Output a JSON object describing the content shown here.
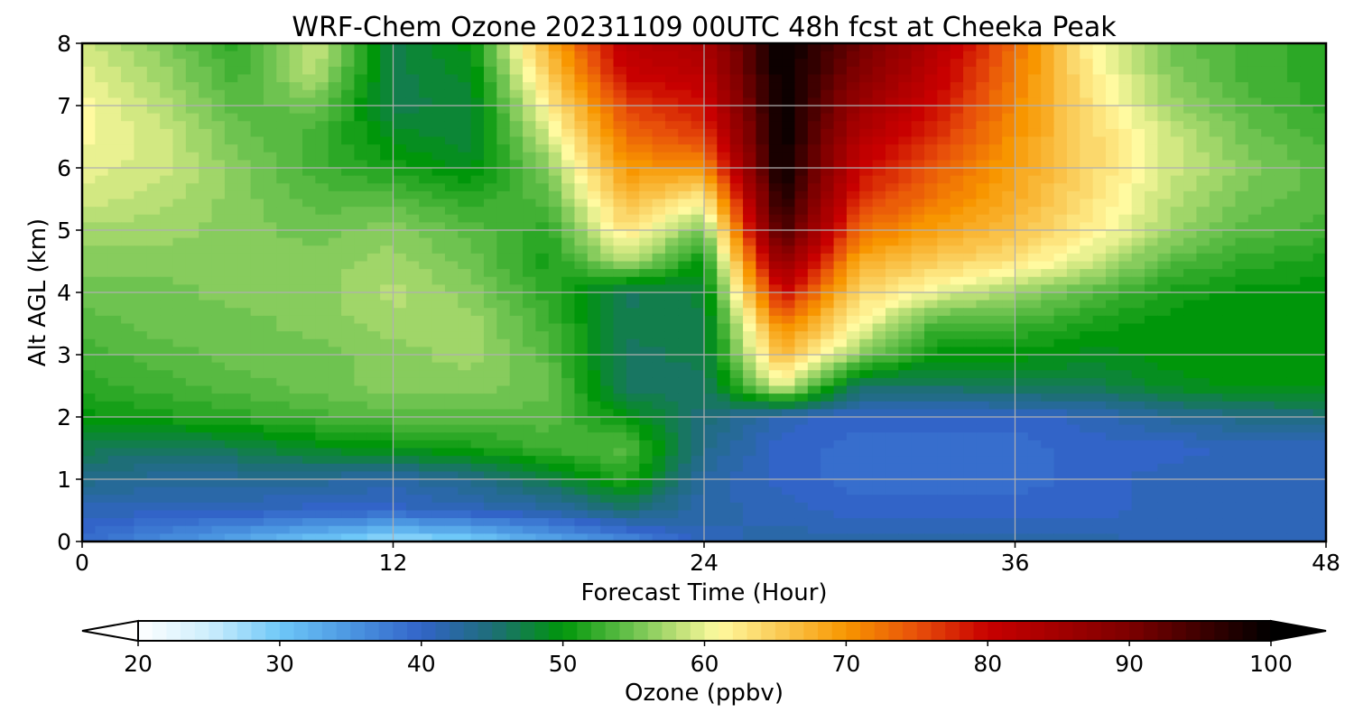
{
  "chart_data": {
    "type": "heatmap",
    "title": "WRF-Chem Ozone  20231109 00UTC 48h fcst at Cheeka Peak",
    "xlabel": "Forecast Time (Hour)",
    "ylabel": "Alt AGL (km)",
    "xlim": [
      0,
      48
    ],
    "ylim": [
      0,
      8
    ],
    "xticks": [
      "0",
      "12",
      "24",
      "36",
      "48"
    ],
    "yticks": [
      "0",
      "1",
      "2",
      "3",
      "4",
      "5",
      "6",
      "7",
      "8"
    ],
    "grid": true,
    "colorbar": {
      "label": "Ozone  (ppbv)",
      "min": 20,
      "max": 100,
      "ticks": [
        "20",
        "30",
        "40",
        "50",
        "60",
        "70",
        "80",
        "90",
        "100"
      ],
      "extend": "both"
    },
    "x": [
      0,
      3,
      6,
      9,
      12,
      15,
      18,
      21,
      24,
      27,
      30,
      33,
      36,
      39,
      42,
      45,
      48
    ],
    "y": [
      0,
      0.5,
      1,
      1.5,
      2,
      2.5,
      3,
      3.5,
      4,
      4.5,
      5,
      5.5,
      6,
      6.5,
      7,
      7.5,
      8
    ],
    "z": [
      [
        39,
        36,
        33,
        30,
        27,
        29,
        33,
        36,
        41,
        42,
        42,
        42,
        42,
        42,
        41,
        41,
        41
      ],
      [
        41,
        41,
        41,
        40,
        40,
        41,
        42,
        45,
        42,
        41,
        40,
        40,
        40,
        40,
        41,
        41,
        41
      ],
      [
        44,
        43,
        43,
        43,
        42,
        44,
        47,
        52,
        42,
        40,
        39,
        39,
        39,
        40,
        41,
        41,
        41
      ],
      [
        47,
        46,
        47,
        49,
        50,
        51,
        53,
        54,
        44,
        40,
        39,
        39,
        39,
        40,
        40,
        41,
        41
      ],
      [
        50,
        51,
        52,
        53,
        54,
        54,
        54,
        50,
        45,
        41,
        40,
        40,
        40,
        41,
        43,
        44,
        45
      ],
      [
        52,
        53,
        54,
        55,
        56,
        56,
        55,
        46,
        46,
        60,
        46,
        46,
        47,
        47,
        49,
        50,
        50
      ],
      [
        53,
        54,
        55,
        55,
        56,
        57,
        54,
        46,
        47,
        67,
        56,
        50,
        50,
        49,
        50,
        50,
        50
      ],
      [
        54,
        55,
        55,
        56,
        57,
        57,
        53,
        47,
        47,
        72,
        61,
        53,
        53,
        51,
        50,
        50,
        50
      ],
      [
        55,
        55,
        56,
        56,
        58,
        56,
        52,
        46,
        48,
        80,
        64,
        60,
        57,
        54,
        51,
        50,
        50
      ],
      [
        56,
        56,
        56,
        56,
        57,
        55,
        51,
        58,
        50,
        88,
        68,
        65,
        63,
        59,
        54,
        52,
        51
      ],
      [
        57,
        57,
        56,
        55,
        56,
        54,
        52,
        63,
        55,
        95,
        73,
        69,
        66,
        62,
        57,
        54,
        53
      ],
      [
        59,
        58,
        56,
        54,
        54,
        52,
        54,
        67,
        62,
        98,
        77,
        72,
        68,
        63,
        58,
        55,
        54
      ],
      [
        60,
        59,
        56,
        53,
        51,
        49,
        56,
        70,
        70,
        100,
        80,
        74,
        69,
        64,
        59,
        56,
        54
      ],
      [
        61,
        59,
        55,
        53,
        49,
        48,
        59,
        73,
        76,
        100,
        83,
        77,
        70,
        64,
        59,
        55,
        53
      ],
      [
        61,
        58,
        54,
        55,
        47,
        48,
        62,
        76,
        79,
        100,
        86,
        79,
        71,
        63,
        57,
        54,
        52
      ],
      [
        60,
        57,
        53,
        58,
        47,
        49,
        65,
        80,
        82,
        100,
        89,
        81,
        72,
        62,
        56,
        53,
        52
      ],
      [
        59,
        56,
        52,
        59,
        47,
        50,
        68,
        82,
        84,
        100,
        91,
        83,
        73,
        61,
        55,
        53,
        52
      ]
    ]
  }
}
